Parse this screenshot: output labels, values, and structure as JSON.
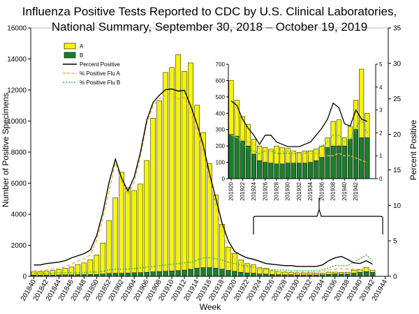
{
  "chart_data": {
    "type": "bar",
    "title_line1": "Influenza Positive Tests Reported to CDC by U.S. Clinical Laboratories,",
    "title_line2": "National Summary, September 30, 2018 – October 19, 2019",
    "xlabel": "Week",
    "ylabel": "Number of Positive Specimens",
    "y2label": "Percent Positive",
    "ylim": [
      0,
      16000
    ],
    "y2lim": [
      0,
      35
    ],
    "yticks": [
      0,
      2000,
      4000,
      6000,
      8000,
      10000,
      12000,
      14000,
      16000
    ],
    "y2ticks": [
      0,
      5,
      10,
      15,
      20,
      25,
      30,
      35
    ],
    "xtick_labels": [
      "201840",
      "201842",
      "201844",
      "201846",
      "201848",
      "201850",
      "201852",
      "201902",
      "201904",
      "201906",
      "201908",
      "201910",
      "201912",
      "201914",
      "201916",
      "201918",
      "201920",
      "201922",
      "201924",
      "201926",
      "201928",
      "201930",
      "201932",
      "201934",
      "201936",
      "201938",
      "201940",
      "201942",
      "201944"
    ],
    "weeks": [
      "201840",
      "201841",
      "201842",
      "201843",
      "201844",
      "201845",
      "201846",
      "201847",
      "201848",
      "201849",
      "201850",
      "201851",
      "201852",
      "201901",
      "201902",
      "201903",
      "201904",
      "201905",
      "201906",
      "201907",
      "201908",
      "201909",
      "201910",
      "201911",
      "201912",
      "201913",
      "201914",
      "201915",
      "201916",
      "201917",
      "201918",
      "201919",
      "201920",
      "201921",
      "201922",
      "201923",
      "201924",
      "201925",
      "201926",
      "201927",
      "201928",
      "201929",
      "201930",
      "201931",
      "201932",
      "201933",
      "201934",
      "201935",
      "201936",
      "201937",
      "201938",
      "201939",
      "201940",
      "201941",
      "201942"
    ],
    "series": [
      {
        "name": "A",
        "color": "#f5f500",
        "values": [
          200,
          220,
          250,
          290,
          330,
          420,
          500,
          650,
          750,
          950,
          1250,
          2000,
          3400,
          4850,
          6500,
          5500,
          5300,
          5700,
          7200,
          9900,
          11000,
          12800,
          13100,
          13900,
          12800,
          13300,
          10500,
          8700,
          6700,
          4700,
          2900,
          1500,
          1150,
          800,
          600,
          550,
          400,
          380,
          250,
          200,
          170,
          150,
          130,
          130,
          130,
          120,
          110,
          140,
          120,
          120,
          120,
          200,
          160,
          280,
          130
        ]
      },
      {
        "name": "B",
        "color": "#1a7f2a",
        "values": [
          80,
          80,
          80,
          80,
          90,
          100,
          100,
          110,
          110,
          120,
          130,
          150,
          190,
          200,
          200,
          210,
          230,
          240,
          260,
          290,
          310,
          330,
          350,
          370,
          400,
          450,
          520,
          560,
          560,
          530,
          460,
          380,
          320,
          260,
          220,
          200,
          150,
          140,
          120,
          110,
          100,
          100,
          90,
          90,
          90,
          90,
          100,
          130,
          150,
          140,
          140,
          200,
          250,
          300,
          250
        ]
      },
      {
        "name": "Percent Positive",
        "color": "#000000",
        "values": [
          1.6,
          1.6,
          1.8,
          1.9,
          2.0,
          2.2,
          2.6,
          2.9,
          3.2,
          3.7,
          5.7,
          9.0,
          13.3,
          16.5,
          13.8,
          12.0,
          14.0,
          17.5,
          22.0,
          24.5,
          25.5,
          26.3,
          26.4,
          26.1,
          26.2,
          24.0,
          21.5,
          18.5,
          14.5,
          11.0,
          7.5,
          5.0,
          3.5,
          3.0,
          2.6,
          2.4,
          2.1,
          1.8,
          1.7,
          1.6,
          1.5,
          1.5,
          1.4,
          1.4,
          1.4,
          1.4,
          1.6,
          2.2,
          2.6,
          2.8,
          2.4,
          1.9,
          1.8,
          2.2,
          1.7
        ]
      },
      {
        "name": "% Positive Flu A",
        "color": "#f2b23a",
        "values": [
          0.8,
          0.8,
          0.9,
          1.0,
          1.1,
          1.4,
          1.7,
          2.1,
          2.5,
          3.0,
          5.0,
          8.2,
          12.0,
          16.0,
          13.2,
          11.5,
          13.2,
          17.0,
          21.5,
          24.0,
          25.0,
          25.5,
          25.8,
          25.0,
          25.2,
          23.0,
          20.5,
          17.5,
          13.5,
          10.0,
          6.5,
          4.0,
          2.5,
          2.0,
          1.5,
          1.3,
          1.0,
          0.9,
          0.8,
          0.7,
          0.7,
          0.6,
          0.6,
          0.6,
          0.6,
          0.6,
          0.7,
          0.9,
          1.0,
          1.1,
          1.0,
          1.0,
          1.0,
          1.2,
          0.8
        ]
      },
      {
        "name": "% Positive Flu B",
        "color": "#33bb33",
        "values": [
          0.4,
          0.4,
          0.4,
          0.4,
          0.5,
          0.5,
          0.5,
          0.5,
          0.5,
          0.6,
          0.6,
          0.7,
          0.9,
          1.0,
          1.0,
          1.0,
          1.1,
          1.2,
          1.3,
          1.4,
          1.5,
          1.6,
          1.7,
          1.8,
          1.9,
          2.0,
          2.3,
          2.6,
          2.6,
          2.5,
          2.3,
          2.0,
          1.8,
          1.6,
          1.4,
          1.3,
          1.1,
          1.0,
          0.9,
          0.9,
          0.9,
          0.8,
          0.8,
          0.8,
          0.8,
          0.8,
          0.9,
          1.2,
          1.5,
          1.5,
          1.5,
          2.0,
          2.5,
          3.0,
          2.2
        ]
      }
    ],
    "inset": {
      "type": "bar",
      "ylim": [
        0,
        700
      ],
      "y2lim": [
        0,
        5
      ],
      "yticks": [
        0,
        100,
        200,
        300,
        400,
        500,
        600,
        700
      ],
      "y2ticks": [
        0,
        1,
        2,
        3,
        4,
        5
      ],
      "xtick_labels": [
        "201920",
        "201922",
        "201924",
        "201926",
        "201928",
        "201930",
        "201932",
        "201934",
        "201936",
        "201938",
        "201940",
        "201942"
      ],
      "start_week_index": 32,
      "A_values": [
        600,
        480,
        380,
        330,
        240,
        200,
        190,
        180,
        200,
        190,
        185,
        170,
        160,
        170,
        170,
        180,
        200,
        250,
        350,
        360,
        250,
        320,
        480,
        670,
        400
      ],
      "B_values": [
        270,
        260,
        230,
        200,
        150,
        110,
        100,
        95,
        90,
        90,
        95,
        95,
        95,
        95,
        100,
        110,
        130,
        190,
        200,
        200,
        200,
        240,
        300,
        250,
        250
      ],
      "percent_positive": [
        3.4,
        3.2,
        2.6,
        2.2,
        1.9,
        1.5,
        1.9,
        1.9,
        1.6,
        1.5,
        1.4,
        1.4,
        1.4,
        1.5,
        1.6,
        1.9,
        2.2,
        2.6,
        3.3,
        3.1,
        2.4,
        2.3,
        3.0,
        2.6,
        2.5
      ],
      "pct_flu_a": [
        1.9,
        1.8,
        1.7,
        1.6,
        1.5,
        1.3,
        1.2,
        1.2,
        1.2,
        1.2,
        1.2,
        1.2,
        1.1,
        1.1,
        1.1,
        1.1,
        1.0,
        1.0,
        1.0,
        1.1,
        1.0,
        1.0,
        0.9,
        0.8,
        0.7
      ],
      "pct_flu_b": [
        1.9,
        1.8,
        1.5,
        1.3,
        1.2,
        1.1,
        1.2,
        1.2,
        1.1,
        1.1,
        1.1,
        1.1,
        1.1,
        1.1,
        1.2,
        1.3,
        1.4,
        1.6,
        1.9,
        1.9,
        1.6,
        1.7,
        2.2,
        2.6,
        2.0
      ]
    }
  }
}
